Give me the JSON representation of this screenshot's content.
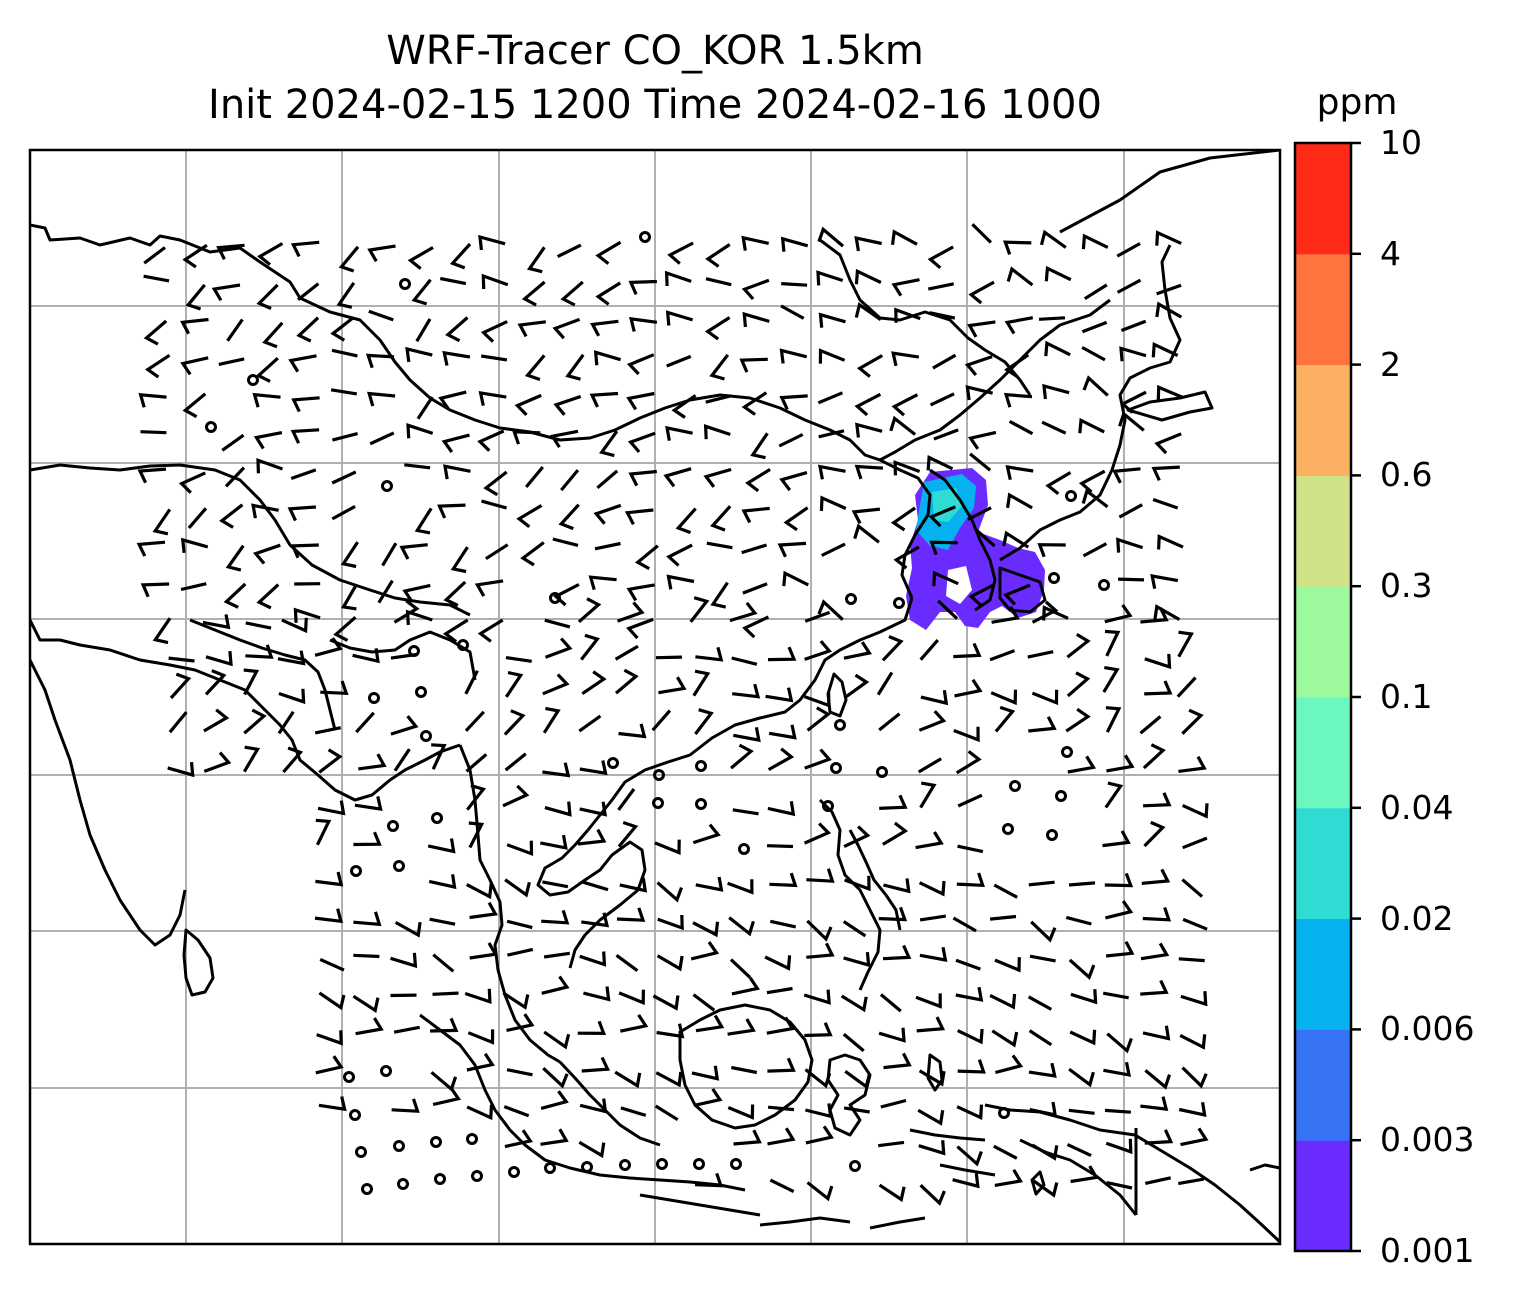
{
  "title": {
    "line1": "WRF-Tracer CO_KOR 1.5km",
    "line2": "Init 2024-02-15 1200 Time 2024-02-16 1000"
  },
  "colorbar": {
    "unit": "ppm",
    "levels": [
      "0.001",
      "0.003",
      "0.006",
      "0.02",
      "0.04",
      "0.1",
      "0.3",
      "0.6",
      "2",
      "4",
      "10"
    ],
    "colors": [
      "#6a2bff",
      "#3673f5",
      "#05b2ef",
      "#2fdcd4",
      "#6cf7c0",
      "#9cf99d",
      "#cfe287",
      "#fcb162",
      "#ff733e",
      "#ff2b18"
    ]
  },
  "map": {
    "background": "#ffffff",
    "gridline_color": "#b0b0b0",
    "coastline_color": "#000000",
    "plume_colors": {
      "core": "#2fdcd4",
      "mid": "#05b2ef",
      "outer": "#6a2bff"
    },
    "symbols": [
      "wind-barb",
      "calm-wind-circle"
    ]
  }
}
